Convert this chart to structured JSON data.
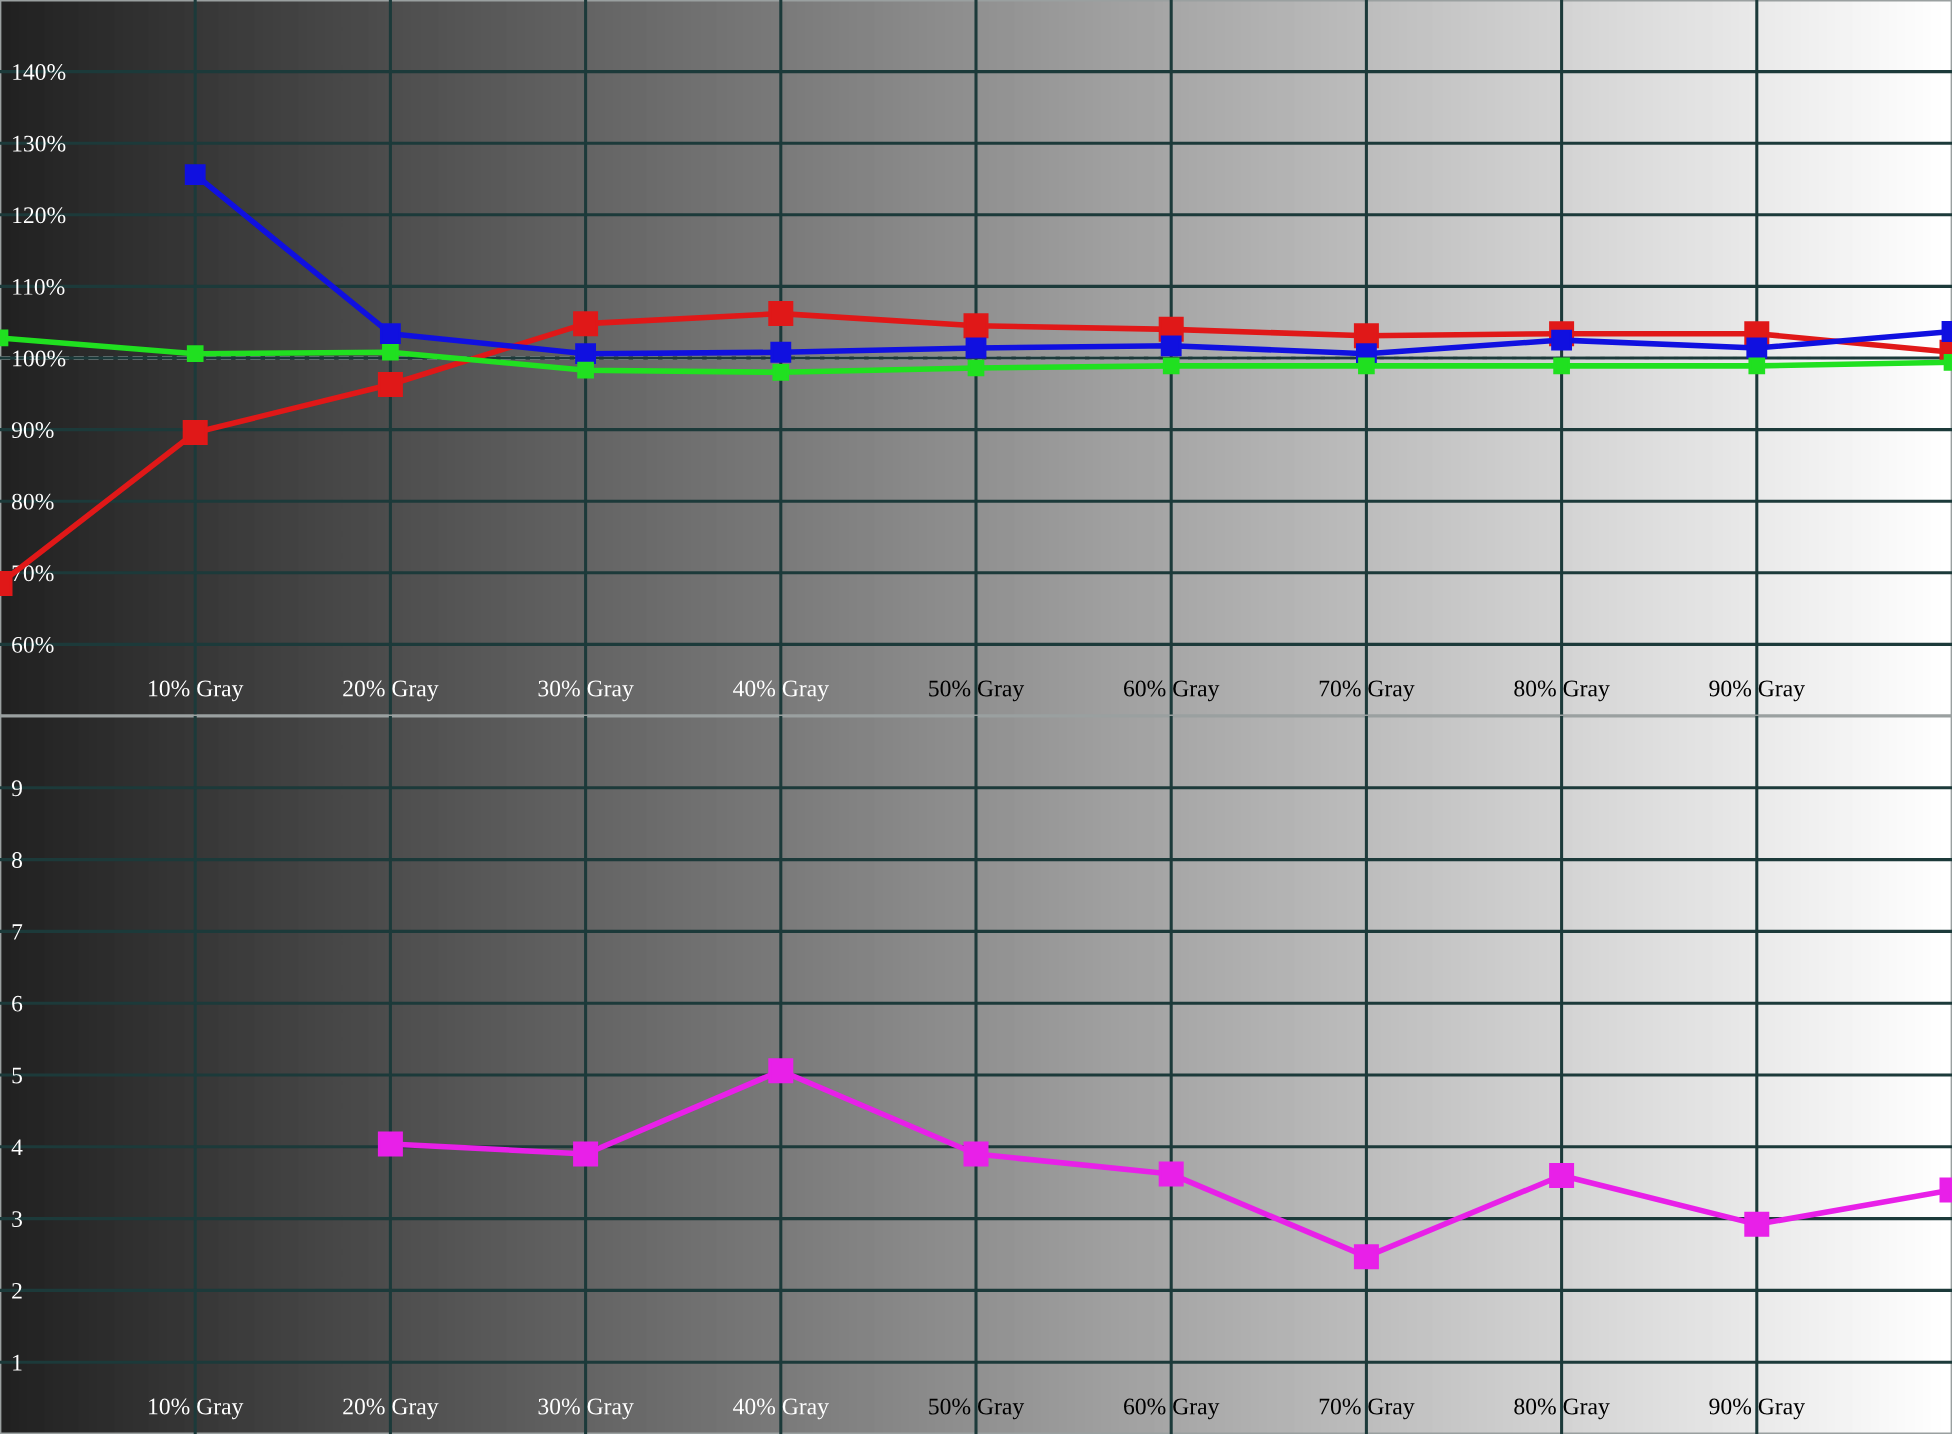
{
  "chart_data": [
    {
      "type": "line",
      "x": [
        0,
        10,
        20,
        30,
        40,
        50,
        60,
        70,
        80,
        90,
        100
      ],
      "xlim": [
        0,
        100
      ],
      "xticks": [
        {
          "value": 10,
          "label": "10% Gray"
        },
        {
          "value": 20,
          "label": "20% Gray"
        },
        {
          "value": 30,
          "label": "30% Gray"
        },
        {
          "value": 40,
          "label": "40% Gray"
        },
        {
          "value": 50,
          "label": "50% Gray"
        },
        {
          "value": 60,
          "label": "60% Gray"
        },
        {
          "value": 70,
          "label": "70% Gray"
        },
        {
          "value": 80,
          "label": "80% Gray"
        },
        {
          "value": 90,
          "label": "90% Gray"
        }
      ],
      "ylim": [
        50,
        150
      ],
      "yticks": [
        {
          "value": 60,
          "label": "60%"
        },
        {
          "value": 70,
          "label": "70%"
        },
        {
          "value": 80,
          "label": "80%"
        },
        {
          "value": 90,
          "label": "90%"
        },
        {
          "value": 100,
          "label": "100%"
        },
        {
          "value": 110,
          "label": "110%"
        },
        {
          "value": 120,
          "label": "120%"
        },
        {
          "value": 130,
          "label": "130%"
        },
        {
          "value": 140,
          "label": "140%"
        }
      ],
      "grid": true,
      "marker": "square",
      "line_style": "solid",
      "ref_lines": [
        {
          "axis": "y",
          "value": 100,
          "label": null,
          "color": "#ffffff",
          "line_style": "dashed"
        }
      ],
      "series": [
        {
          "color": "#e01818",
          "values": [
            68.5,
            89.6,
            96.3,
            104.8,
            106.2,
            104.5,
            104,
            103.1,
            103.4,
            103.4,
            100.8
          ]
        },
        {
          "color": "#1010e0",
          "values": [
            null,
            125.6,
            103.4,
            100.6,
            100.8,
            101.4,
            101.7,
            100.6,
            102.5,
            101.4,
            103.7
          ]
        },
        {
          "color": "#20e020",
          "values": [
            102.8,
            100.6,
            100.8,
            98.3,
            98,
            98.6,
            98.9,
            98.9,
            98.9,
            98.9,
            99.4
          ]
        }
      ]
    },
    {
      "type": "line",
      "xlim": [
        0,
        100
      ],
      "xticks": [
        {
          "value": 10,
          "label": "10% Gray"
        },
        {
          "value": 20,
          "label": "20% Gray"
        },
        {
          "value": 30,
          "label": "30% Gray"
        },
        {
          "value": 40,
          "label": "40% Gray"
        },
        {
          "value": 50,
          "label": "50% Gray"
        },
        {
          "value": 60,
          "label": "60% Gray"
        },
        {
          "value": 70,
          "label": "70% Gray"
        },
        {
          "value": 80,
          "label": "80% Gray"
        },
        {
          "value": 90,
          "label": "90% Gray"
        }
      ],
      "ylim": [
        0,
        10
      ],
      "yticks": [
        1,
        2,
        3,
        4,
        5,
        6,
        7,
        8,
        9
      ],
      "grid": true,
      "marker": "square",
      "line_style": "solid",
      "series": [
        {
          "color": "#e820e8",
          "x": [
            20,
            30,
            40,
            50,
            60,
            70,
            80,
            90,
            100
          ],
          "values": [
            4.04,
            3.9,
            5.06,
            3.9,
            3.62,
            2.47,
            3.6,
            2.92,
            3.4
          ]
        }
      ]
    }
  ]
}
